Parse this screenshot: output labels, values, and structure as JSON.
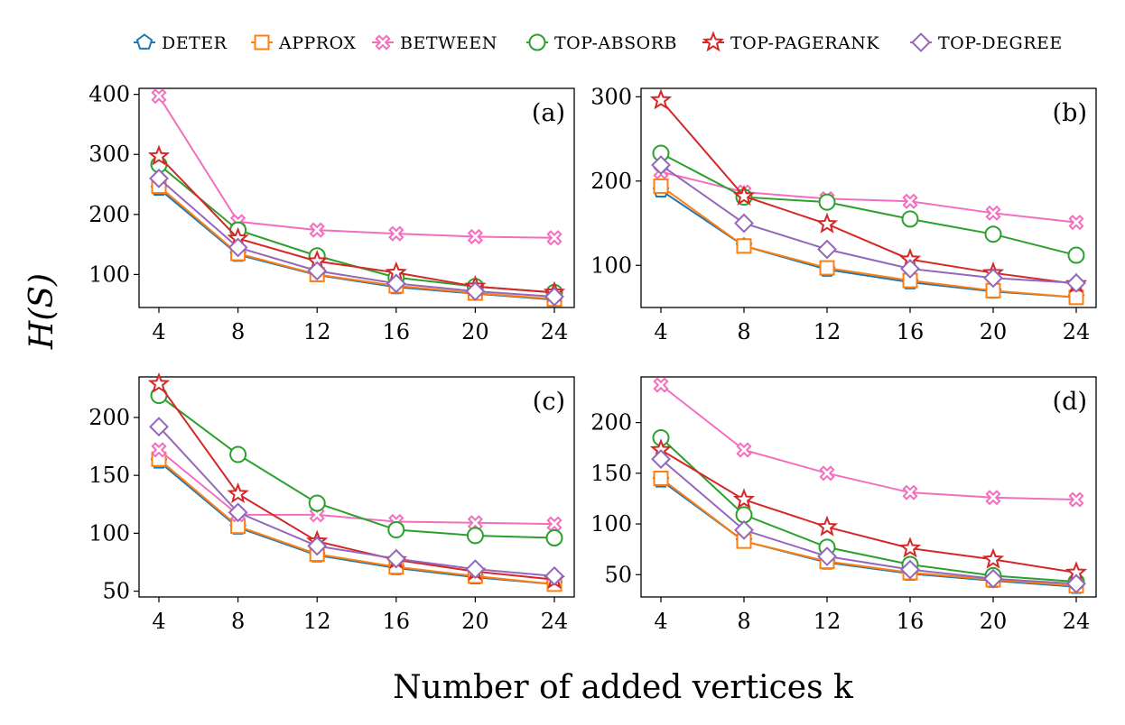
{
  "chart_data": {
    "type": "line",
    "ylabel": "H(S)",
    "xlabel": "Number of added vertices k",
    "x": [
      4,
      8,
      12,
      16,
      20,
      24
    ],
    "legend": {
      "placement": "top",
      "entries": [
        "Deter",
        "Approx",
        "Between",
        "Top-Absorb",
        "Top-PageRank",
        "Top-Degree"
      ]
    },
    "series_styles": [
      {
        "name": "Deter",
        "color": "#1f77b4",
        "marker": "pentagon"
      },
      {
        "name": "Approx",
        "color": "#ff7f0e",
        "marker": "square"
      },
      {
        "name": "Between",
        "color": "#f36fbe",
        "marker": "x-circle"
      },
      {
        "name": "Top-Absorb",
        "color": "#2ca02c",
        "marker": "circle"
      },
      {
        "name": "Top-PageRank",
        "color": "#d62728",
        "marker": "star"
      },
      {
        "name": "Top-Degree",
        "color": "#9467bd",
        "marker": "diamond"
      }
    ],
    "panels": [
      {
        "label": "(a)",
        "ylim": [
          45,
          410
        ],
        "yticks": [
          100,
          200,
          300,
          400
        ],
        "series": [
          {
            "name": "Deter",
            "values": [
              243,
              133,
              99,
              79,
              68,
              58
            ]
          },
          {
            "name": "Approx",
            "values": [
              247,
              135,
              100,
              81,
              69,
              59
            ]
          },
          {
            "name": "Between",
            "values": [
              397,
              188,
              174,
              168,
              163,
              161
            ]
          },
          {
            "name": "Top-Absorb",
            "values": [
              283,
              174,
              131,
              95,
              80,
              70
            ]
          },
          {
            "name": "Top-PageRank",
            "values": [
              297,
              160,
              122,
              103,
              80,
              70
            ]
          },
          {
            "name": "Top-Degree",
            "values": [
              260,
              145,
              106,
              85,
              72,
              63
            ]
          }
        ]
      },
      {
        "label": "(b)",
        "ylim": [
          50,
          310
        ],
        "yticks": [
          100,
          200,
          300
        ],
        "series": [
          {
            "name": "Deter",
            "values": [
              189,
              123,
              95,
              80,
              69,
              62
            ]
          },
          {
            "name": "Approx",
            "values": [
              194,
              123,
              97,
              82,
              70,
              62
            ]
          },
          {
            "name": "Between",
            "values": [
              211,
              187,
              179,
              176,
              162,
              151
            ]
          },
          {
            "name": "Top-Absorb",
            "values": [
              233,
              181,
              175,
              155,
              137,
              112
            ]
          },
          {
            "name": "Top-PageRank",
            "values": [
              296,
              182,
              149,
              107,
              91,
              78
            ]
          },
          {
            "name": "Top-Degree",
            "values": [
              219,
              150,
              119,
              96,
              85,
              79
            ]
          }
        ]
      },
      {
        "label": "(c)",
        "ylim": [
          45,
          235
        ],
        "yticks": [
          50,
          100,
          150,
          200
        ],
        "series": [
          {
            "name": "Deter",
            "values": [
              162,
              105,
              81,
              70,
              62,
              56
            ]
          },
          {
            "name": "Approx",
            "values": [
              164,
              106,
              82,
              71,
              63,
              56
            ]
          },
          {
            "name": "Between",
            "values": [
              172,
              116,
              116,
              110,
              109,
              108
            ]
          },
          {
            "name": "Top-Absorb",
            "values": [
              219,
              168,
              126,
              103,
              98,
              96
            ]
          },
          {
            "name": "Top-PageRank",
            "values": [
              229,
              134,
              93,
              77,
              67,
              60
            ]
          },
          {
            "name": "Top-Degree",
            "values": [
              192,
              118,
              89,
              78,
              69,
              63
            ]
          }
        ]
      },
      {
        "label": "(d)",
        "ylim": [
          28,
          245
        ],
        "yticks": [
          50,
          100,
          150,
          200
        ],
        "series": [
          {
            "name": "Deter",
            "values": [
              143,
              83,
              62,
              51,
              44,
              38
            ]
          },
          {
            "name": "Approx",
            "values": [
              145,
              83,
              63,
              52,
              45,
              39
            ]
          },
          {
            "name": "Between",
            "values": [
              237,
              173,
              150,
              131,
              126,
              124
            ]
          },
          {
            "name": "Top-Absorb",
            "values": [
              185,
              109,
              77,
              60,
              49,
              43
            ]
          },
          {
            "name": "Top-PageRank",
            "values": [
              173,
              124,
              97,
              76,
              65,
              52
            ]
          },
          {
            "name": "Top-Degree",
            "values": [
              164,
              94,
              68,
              55,
              46,
              41
            ]
          }
        ]
      }
    ]
  }
}
